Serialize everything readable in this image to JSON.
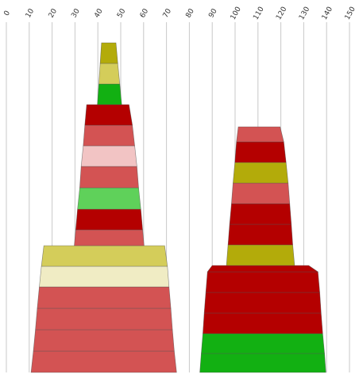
{
  "chart_data": {
    "type": "stacked-trapezoid",
    "title": "",
    "xlabel": "",
    "ylabel": "",
    "xlim": [
      0,
      150
    ],
    "xticks": [
      0,
      10,
      20,
      30,
      40,
      50,
      60,
      70,
      80,
      90,
      100,
      110,
      120,
      130,
      140,
      150
    ],
    "grid": true,
    "stacks": [
      {
        "segments": [
          {
            "x1_bottom": 10.8,
            "x2_bottom": 74.4,
            "x1_top": 11.8,
            "x2_top": 73.4,
            "color": "#d35353"
          },
          {
            "x1_bottom": 11.8,
            "x2_bottom": 73.4,
            "x1_top": 12.7,
            "x2_top": 72.6,
            "color": "#d35353"
          },
          {
            "x1_bottom": 12.7,
            "x2_bottom": 72.6,
            "x1_top": 13.5,
            "x2_top": 71.9,
            "color": "#d35353"
          },
          {
            "x1_bottom": 13.5,
            "x2_bottom": 71.9,
            "x1_top": 14.4,
            "x2_top": 71.1,
            "color": "#d35353"
          },
          {
            "x1_bottom": 14.4,
            "x2_bottom": 71.1,
            "x1_top": 15.3,
            "x2_top": 70.4,
            "color": "#f0ecc4"
          },
          {
            "x1_bottom": 15.3,
            "x2_bottom": 70.4,
            "x1_top": 16.4,
            "x2_top": 69.2,
            "color": "#d4cd5a"
          },
          {
            "x1_bottom": 29.7,
            "x2_bottom": 60.2,
            "x1_top": 30.3,
            "x2_top": 59.6,
            "color": "#d35353"
          },
          {
            "x1_bottom": 30.3,
            "x2_bottom": 59.6,
            "x1_top": 31.1,
            "x2_top": 58.8,
            "color": "#b40000"
          },
          {
            "x1_bottom": 31.1,
            "x2_bottom": 58.8,
            "x1_top": 32.1,
            "x2_top": 57.8,
            "color": "#5fd15a"
          },
          {
            "x1_bottom": 32.1,
            "x2_bottom": 57.8,
            "x1_top": 32.7,
            "x2_top": 57.1,
            "color": "#d35353"
          },
          {
            "x1_bottom": 32.7,
            "x2_bottom": 57.1,
            "x1_top": 33.6,
            "x2_top": 56.1,
            "color": "#f2c4c4"
          },
          {
            "x1_bottom": 33.6,
            "x2_bottom": 56.1,
            "x1_top": 34.3,
            "x2_top": 55.1,
            "color": "#d35353"
          },
          {
            "x1_bottom": 34.3,
            "x2_bottom": 55.1,
            "x1_top": 35.1,
            "x2_top": 53.6,
            "color": "#b40000"
          },
          {
            "x1_bottom": 39.8,
            "x2_bottom": 50.4,
            "x1_top": 40.4,
            "x2_top": 49.6,
            "color": "#12b012"
          },
          {
            "x1_bottom": 40.4,
            "x2_bottom": 49.6,
            "x1_top": 41.0,
            "x2_top": 48.7,
            "color": "#d4cd5a"
          },
          {
            "x1_bottom": 41.0,
            "x2_bottom": 48.7,
            "x1_top": 41.6,
            "x2_top": 47.9,
            "color": "#b3ab0a"
          }
        ]
      },
      {
        "segments": [
          {
            "x1_bottom": 84.6,
            "x2_bottom": 139.7,
            "x1_top": 85.2,
            "x2_top": 139.1,
            "color": "#12b012"
          },
          {
            "x1_bottom": 85.2,
            "x2_bottom": 139.1,
            "x1_top": 85.9,
            "x2_top": 138.3,
            "color": "#12b012"
          },
          {
            "x1_bottom": 85.9,
            "x2_bottom": 138.3,
            "x1_top": 86.5,
            "x2_top": 137.6,
            "color": "#b40000"
          },
          {
            "x1_bottom": 86.5,
            "x2_bottom": 137.6,
            "x1_top": 87.2,
            "x2_top": 137.0,
            "color": "#b40000"
          },
          {
            "x1_bottom": 87.2,
            "x2_bottom": 137.0,
            "x1_top": 87.9,
            "x2_top": 136.2,
            "color": "#b40000"
          },
          {
            "x1_bottom": 87.9,
            "x2_bottom": 136.2,
            "x1_top": 90.0,
            "x2_top": 132.2,
            "color": "#b40000"
          },
          {
            "x1_bottom": 96.2,
            "x2_bottom": 126.0,
            "x1_top": 96.9,
            "x2_top": 125.2,
            "color": "#b3ab0a"
          },
          {
            "x1_bottom": 96.9,
            "x2_bottom": 125.2,
            "x1_top": 97.6,
            "x2_top": 124.6,
            "color": "#b40000"
          },
          {
            "x1_bottom": 97.6,
            "x2_bottom": 124.6,
            "x1_top": 98.4,
            "x2_top": 123.9,
            "color": "#b40000"
          },
          {
            "x1_bottom": 98.4,
            "x2_bottom": 123.9,
            "x1_top": 99.1,
            "x2_top": 123.2,
            "color": "#d35353"
          },
          {
            "x1_bottom": 99.1,
            "x2_bottom": 123.2,
            "x1_top": 99.9,
            "x2_top": 122.3,
            "color": "#b3ab0a"
          },
          {
            "x1_bottom": 99.9,
            "x2_bottom": 122.3,
            "x1_top": 100.6,
            "x2_top": 121.3,
            "color": "#b40000"
          },
          {
            "x1_bottom": 100.6,
            "x2_bottom": 121.3,
            "x1_top": 101.4,
            "x2_top": 119.7,
            "color": "#d35353"
          }
        ]
      }
    ]
  }
}
